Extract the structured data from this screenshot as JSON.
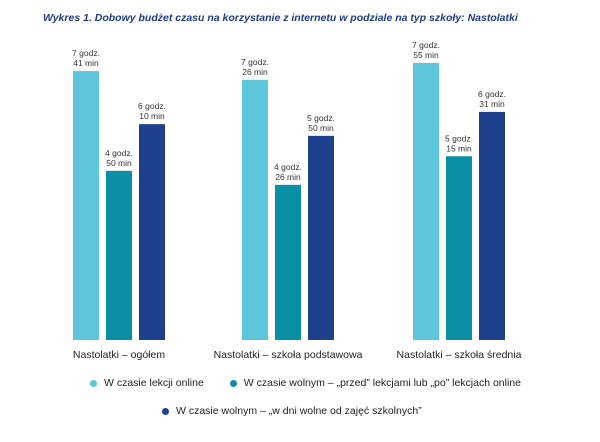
{
  "title": "Wykres 1. Dobowy budżet czasu na korzystanie z internetu w podziale na typ szkoły: Nastolatki",
  "colors": {
    "series1": "#5ec6db",
    "series2": "#0a8fa5",
    "series3": "#1d3f8c"
  },
  "chart_data": {
    "type": "bar",
    "title": "Wykres 1. Dobowy budżet czasu na korzystanie z internetu w podziale na typ szkoły: Nastolatki",
    "xlabel": "",
    "ylabel": "",
    "ylim": [
      0,
      480
    ],
    "unit": "minutes",
    "grid": false,
    "legend_position": "bottom",
    "categories": [
      "Nastolatki – ogółem",
      "Nastolatki – szkoła podstawowa",
      "Nastolatki – szkoła średnia"
    ],
    "series": [
      {
        "name": "W czasie lekcji online",
        "values": [
          461,
          446,
          475
        ],
        "labels": [
          [
            "7 godz.",
            "41 min"
          ],
          [
            "7 godz.",
            "26 min"
          ],
          [
            "7 godz.",
            "55 min"
          ]
        ]
      },
      {
        "name": "W czasie wolnym – „przed” lekcjami lub „po” lekcjach online",
        "values": [
          290,
          266,
          315
        ],
        "labels": [
          [
            "4 godz.",
            "50 min"
          ],
          [
            "4 godz.",
            "26 min"
          ],
          [
            "5 godz.",
            "15 min"
          ]
        ]
      },
      {
        "name": "W czasie wolnym – „w dni wolne od zajęć szkolnych”",
        "values": [
          370,
          350,
          391
        ],
        "labels": [
          [
            "6 godz.",
            "10 min"
          ],
          [
            "5 godz.",
            "50 min"
          ],
          [
            "6 godz.",
            "31 min"
          ]
        ]
      }
    ]
  },
  "legend": [
    {
      "label": "W czasie lekcji online",
      "color": "#5ec6db"
    },
    {
      "label": "W czasie wolnym – „przed” lekcjami lub „po” lekcjach online",
      "color": "#0a8fa5"
    },
    {
      "label": "W czasie wolnym – „w dni wolne od zajęć szkolnych”",
      "color": "#1d3f8c"
    }
  ]
}
